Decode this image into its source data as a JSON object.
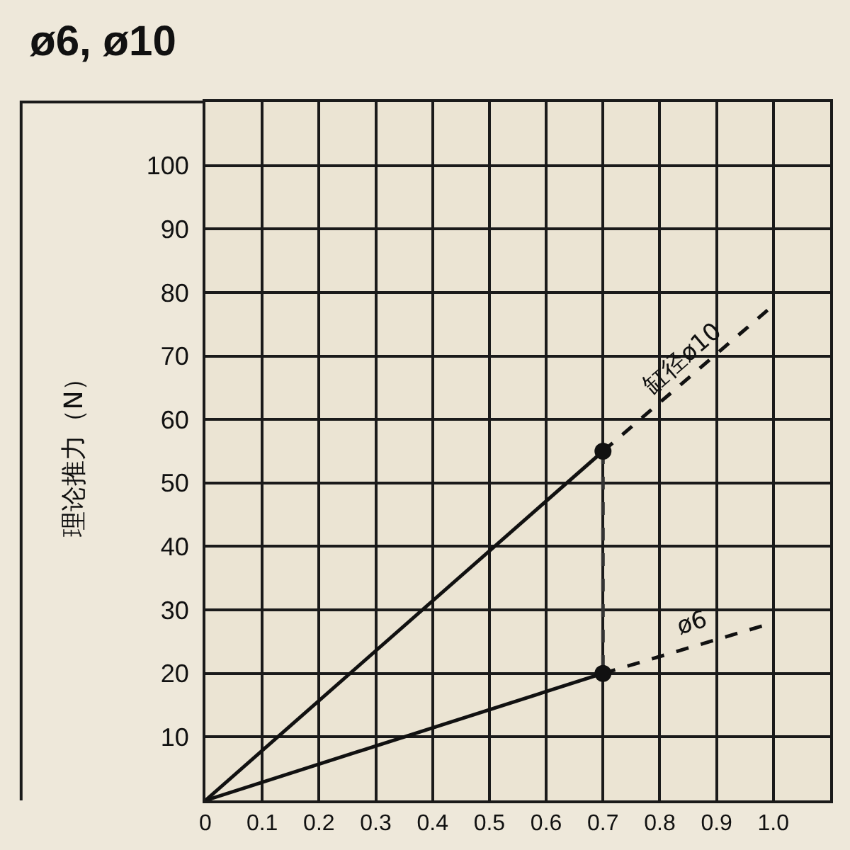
{
  "chart_data": {
    "type": "line",
    "title": "ø6, ø10",
    "ylabel": "理论推力（N）",
    "xlim": [
      0,
      1.1
    ],
    "xticks": [
      0,
      0.1,
      0.2,
      0.3,
      0.4,
      0.5,
      0.6,
      0.7,
      0.8,
      0.9,
      {
        "value": 1,
        "label": "1.0"
      }
    ],
    "ylim": [
      0,
      110
    ],
    "yticks": [
      10,
      20,
      30,
      40,
      50,
      60,
      70,
      80,
      90,
      100
    ],
    "grid": true,
    "legend": false,
    "marker": "none",
    "series": [
      {
        "x": [
          0,
          0.7
        ],
        "values": [
          0,
          55
        ],
        "color": "#111111",
        "line_style": "solid"
      },
      {
        "name": "缸径ø10",
        "x": [
          0.7,
          1.0
        ],
        "values": [
          55,
          78
        ],
        "color": "#111111",
        "line_style": "dashed"
      },
      {
        "x": [
          0,
          0.7
        ],
        "values": [
          0,
          20
        ],
        "color": "#111111",
        "line_style": "solid"
      },
      {
        "name": "ø6",
        "x": [
          0.7,
          1.0
        ],
        "values": [
          20,
          28
        ],
        "color": "#111111",
        "line_style": "dashed"
      },
      {
        "x": [
          0.7,
          0.7
        ],
        "values": [
          55,
          20
        ],
        "color": "#333333",
        "line_style": "dashed"
      },
      {
        "type": "scatter",
        "x": [
          0.7,
          0.7
        ],
        "values": [
          55,
          20
        ],
        "color": "#111111",
        "marker": "circle"
      }
    ]
  }
}
